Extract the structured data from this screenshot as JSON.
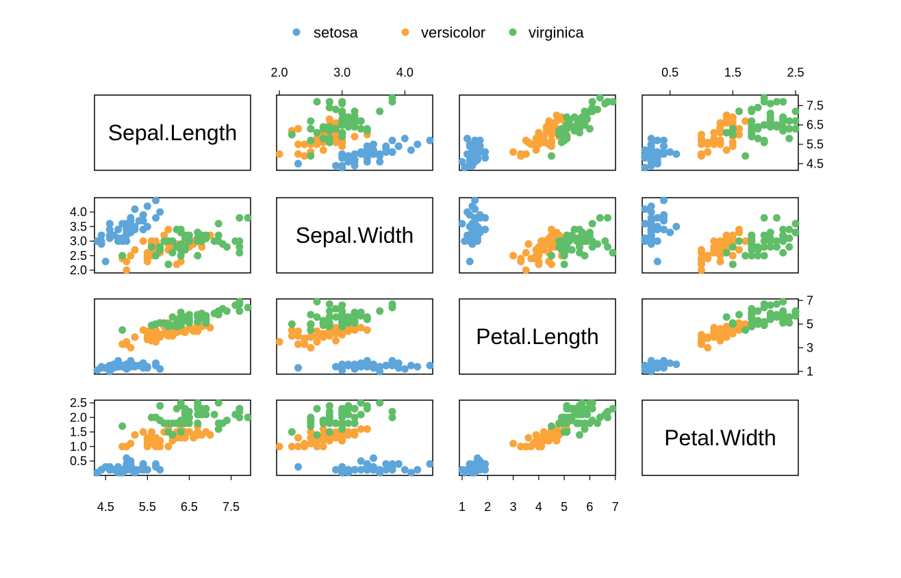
{
  "chart_data": {
    "type": "scatter",
    "kind": "scatterplot-matrix",
    "variables": [
      "Sepal.Length",
      "Sepal.Width",
      "Petal.Length",
      "Petal.Width"
    ],
    "axis_ranges": {
      "Sepal.Length": [
        4.3,
        7.9
      ],
      "Sepal.Width": [
        2.0,
        4.4
      ],
      "Petal.Length": [
        1.0,
        6.9
      ],
      "Petal.Width": [
        0.1,
        2.5
      ]
    },
    "ticks": {
      "Sepal.Length": [
        "4.5",
        "5.5",
        "6.5",
        "7.5"
      ],
      "Sepal.Width": [
        "2.0",
        "2.5",
        "3.0",
        "3.5",
        "4.0"
      ],
      "Sepal.Width.top": [
        "2.0",
        "3.0",
        "4.0"
      ],
      "Petal.Length": [
        "1",
        "2",
        "3",
        "4",
        "5",
        "6",
        "7"
      ],
      "Petal.Length.right": [
        "1",
        "3",
        "5",
        "7"
      ],
      "Petal.Width": [
        "0.5",
        "1.0",
        "1.5",
        "2.0",
        "2.5"
      ],
      "Petal.Width.top": [
        "0.5",
        "1.5",
        "2.5"
      ]
    },
    "legend": {
      "position": "top-center"
    },
    "grid": false,
    "series": [
      {
        "name": "setosa",
        "color": "#5DA5DA",
        "points": [
          [
            5.1,
            3.5,
            1.4,
            0.2
          ],
          [
            4.9,
            3.0,
            1.4,
            0.2
          ],
          [
            4.7,
            3.2,
            1.3,
            0.2
          ],
          [
            4.6,
            3.1,
            1.5,
            0.2
          ],
          [
            5.0,
            3.6,
            1.4,
            0.2
          ],
          [
            5.4,
            3.9,
            1.7,
            0.4
          ],
          [
            4.6,
            3.4,
            1.4,
            0.3
          ],
          [
            5.0,
            3.4,
            1.5,
            0.2
          ],
          [
            4.4,
            2.9,
            1.4,
            0.2
          ],
          [
            4.9,
            3.1,
            1.5,
            0.1
          ],
          [
            5.4,
            3.7,
            1.5,
            0.2
          ],
          [
            4.8,
            3.4,
            1.6,
            0.2
          ],
          [
            4.8,
            3.0,
            1.4,
            0.1
          ],
          [
            4.3,
            3.0,
            1.1,
            0.1
          ],
          [
            5.8,
            4.0,
            1.2,
            0.2
          ],
          [
            5.7,
            4.4,
            1.5,
            0.4
          ],
          [
            5.4,
            3.9,
            1.3,
            0.4
          ],
          [
            5.1,
            3.5,
            1.4,
            0.3
          ],
          [
            5.7,
            3.8,
            1.7,
            0.3
          ],
          [
            5.1,
            3.8,
            1.5,
            0.3
          ],
          [
            5.4,
            3.4,
            1.7,
            0.2
          ],
          [
            5.1,
            3.7,
            1.5,
            0.4
          ],
          [
            4.6,
            3.6,
            1.0,
            0.2
          ],
          [
            5.1,
            3.3,
            1.7,
            0.5
          ],
          [
            4.8,
            3.4,
            1.9,
            0.2
          ],
          [
            5.0,
            3.0,
            1.6,
            0.2
          ],
          [
            5.0,
            3.4,
            1.6,
            0.4
          ],
          [
            5.2,
            3.5,
            1.5,
            0.2
          ],
          [
            5.2,
            3.4,
            1.4,
            0.2
          ],
          [
            4.7,
            3.2,
            1.6,
            0.2
          ],
          [
            4.8,
            3.1,
            1.6,
            0.2
          ],
          [
            5.4,
            3.4,
            1.5,
            0.4
          ],
          [
            5.2,
            4.1,
            1.5,
            0.1
          ],
          [
            5.5,
            4.2,
            1.4,
            0.2
          ],
          [
            4.9,
            3.1,
            1.5,
            0.2
          ],
          [
            5.0,
            3.2,
            1.2,
            0.2
          ],
          [
            5.5,
            3.5,
            1.3,
            0.2
          ],
          [
            4.9,
            3.6,
            1.4,
            0.1
          ],
          [
            4.4,
            3.0,
            1.3,
            0.2
          ],
          [
            5.1,
            3.4,
            1.5,
            0.2
          ],
          [
            5.0,
            3.5,
            1.3,
            0.3
          ],
          [
            4.5,
            2.3,
            1.3,
            0.3
          ],
          [
            4.4,
            3.2,
            1.3,
            0.2
          ],
          [
            5.0,
            3.5,
            1.6,
            0.6
          ],
          [
            5.1,
            3.8,
            1.9,
            0.4
          ],
          [
            4.8,
            3.0,
            1.4,
            0.3
          ],
          [
            5.1,
            3.8,
            1.6,
            0.2
          ],
          [
            4.6,
            3.2,
            1.4,
            0.2
          ],
          [
            5.3,
            3.7,
            1.5,
            0.2
          ],
          [
            5.0,
            3.3,
            1.4,
            0.2
          ]
        ]
      },
      {
        "name": "versicolor",
        "color": "#FAA43A",
        "points": [
          [
            7.0,
            3.2,
            4.7,
            1.4
          ],
          [
            6.4,
            3.2,
            4.5,
            1.5
          ],
          [
            6.9,
            3.1,
            4.9,
            1.5
          ],
          [
            5.5,
            2.3,
            4.0,
            1.3
          ],
          [
            6.5,
            2.8,
            4.6,
            1.5
          ],
          [
            5.7,
            2.8,
            4.5,
            1.3
          ],
          [
            6.3,
            3.3,
            4.7,
            1.6
          ],
          [
            4.9,
            2.4,
            3.3,
            1.0
          ],
          [
            6.6,
            2.9,
            4.6,
            1.3
          ],
          [
            5.2,
            2.7,
            3.9,
            1.4
          ],
          [
            5.0,
            2.0,
            3.5,
            1.0
          ],
          [
            5.9,
            3.0,
            4.2,
            1.5
          ],
          [
            6.0,
            2.2,
            4.0,
            1.0
          ],
          [
            6.1,
            2.9,
            4.7,
            1.4
          ],
          [
            5.6,
            2.9,
            3.6,
            1.3
          ],
          [
            6.7,
            3.1,
            4.4,
            1.4
          ],
          [
            5.6,
            3.0,
            4.5,
            1.5
          ],
          [
            5.8,
            2.7,
            4.1,
            1.0
          ],
          [
            6.2,
            2.2,
            4.5,
            1.5
          ],
          [
            5.6,
            2.5,
            3.9,
            1.1
          ],
          [
            5.9,
            3.2,
            4.8,
            1.8
          ],
          [
            6.1,
            2.8,
            4.0,
            1.3
          ],
          [
            6.3,
            2.5,
            4.9,
            1.5
          ],
          [
            6.1,
            2.8,
            4.7,
            1.2
          ],
          [
            6.4,
            2.9,
            4.3,
            1.3
          ],
          [
            6.6,
            3.0,
            4.4,
            1.4
          ],
          [
            6.8,
            2.8,
            4.8,
            1.4
          ],
          [
            6.7,
            3.0,
            5.0,
            1.7
          ],
          [
            6.0,
            2.9,
            4.5,
            1.5
          ],
          [
            5.7,
            2.6,
            3.5,
            1.0
          ],
          [
            5.5,
            2.4,
            3.8,
            1.1
          ],
          [
            5.5,
            2.4,
            3.7,
            1.0
          ],
          [
            5.8,
            2.7,
            3.9,
            1.2
          ],
          [
            6.0,
            2.7,
            5.1,
            1.6
          ],
          [
            5.4,
            3.0,
            4.5,
            1.5
          ],
          [
            6.0,
            3.4,
            4.5,
            1.6
          ],
          [
            6.7,
            3.1,
            4.7,
            1.5
          ],
          [
            6.3,
            2.3,
            4.4,
            1.3
          ],
          [
            5.6,
            3.0,
            4.1,
            1.3
          ],
          [
            5.5,
            2.5,
            4.0,
            1.3
          ],
          [
            5.5,
            2.6,
            4.4,
            1.2
          ],
          [
            6.1,
            3.0,
            4.6,
            1.4
          ],
          [
            5.8,
            2.6,
            4.0,
            1.2
          ],
          [
            5.0,
            2.3,
            3.3,
            1.0
          ],
          [
            5.6,
            2.7,
            4.2,
            1.3
          ],
          [
            5.7,
            3.0,
            4.2,
            1.2
          ],
          [
            5.7,
            2.9,
            4.2,
            1.3
          ],
          [
            6.2,
            2.9,
            4.3,
            1.3
          ],
          [
            5.1,
            2.5,
            3.0,
            1.1
          ],
          [
            5.7,
            2.8,
            4.1,
            1.3
          ]
        ]
      },
      {
        "name": "virginica",
        "color": "#60BD68",
        "points": [
          [
            6.3,
            3.3,
            6.0,
            2.5
          ],
          [
            5.8,
            2.7,
            5.1,
            1.9
          ],
          [
            7.1,
            3.0,
            5.9,
            2.1
          ],
          [
            6.3,
            2.9,
            5.6,
            1.8
          ],
          [
            6.5,
            3.0,
            5.8,
            2.2
          ],
          [
            7.6,
            3.0,
            6.6,
            2.1
          ],
          [
            4.9,
            2.5,
            4.5,
            1.7
          ],
          [
            7.3,
            2.9,
            6.3,
            1.8
          ],
          [
            6.7,
            2.5,
            5.8,
            1.8
          ],
          [
            7.2,
            3.6,
            6.1,
            2.5
          ],
          [
            6.5,
            3.2,
            5.1,
            2.0
          ],
          [
            6.4,
            2.7,
            5.3,
            1.9
          ],
          [
            6.8,
            3.0,
            5.5,
            2.1
          ],
          [
            5.7,
            2.5,
            5.0,
            2.0
          ],
          [
            5.8,
            2.8,
            5.1,
            2.4
          ],
          [
            6.4,
            3.2,
            5.3,
            2.3
          ],
          [
            6.5,
            3.0,
            5.5,
            1.8
          ],
          [
            7.7,
            3.8,
            6.7,
            2.2
          ],
          [
            7.7,
            2.6,
            6.9,
            2.3
          ],
          [
            6.0,
            2.2,
            5.0,
            1.5
          ],
          [
            6.9,
            3.2,
            5.7,
            2.3
          ],
          [
            5.6,
            2.8,
            4.9,
            2.0
          ],
          [
            7.7,
            2.8,
            6.7,
            2.0
          ],
          [
            6.3,
            2.7,
            4.9,
            1.8
          ],
          [
            6.7,
            3.3,
            5.7,
            2.1
          ],
          [
            7.2,
            3.2,
            6.0,
            1.8
          ],
          [
            6.2,
            2.8,
            4.8,
            1.8
          ],
          [
            6.1,
            3.0,
            4.9,
            1.8
          ],
          [
            6.4,
            2.8,
            5.6,
            2.1
          ],
          [
            7.2,
            3.0,
            5.8,
            1.6
          ],
          [
            7.4,
            2.8,
            6.1,
            1.9
          ],
          [
            7.9,
            3.8,
            6.4,
            2.0
          ],
          [
            6.4,
            2.8,
            5.6,
            2.2
          ],
          [
            6.3,
            2.8,
            5.1,
            1.5
          ],
          [
            6.1,
            2.6,
            5.6,
            1.4
          ],
          [
            7.7,
            3.0,
            6.1,
            2.3
          ],
          [
            6.3,
            3.4,
            5.6,
            2.4
          ],
          [
            6.4,
            3.1,
            5.5,
            1.8
          ],
          [
            6.0,
            3.0,
            4.8,
            1.8
          ],
          [
            6.9,
            3.1,
            5.4,
            2.1
          ],
          [
            6.7,
            3.1,
            5.6,
            2.4
          ],
          [
            6.9,
            3.1,
            5.1,
            2.3
          ],
          [
            5.8,
            2.7,
            5.1,
            1.9
          ],
          [
            6.8,
            3.2,
            5.9,
            2.3
          ],
          [
            6.7,
            3.3,
            5.7,
            2.5
          ],
          [
            6.7,
            3.0,
            5.2,
            2.3
          ],
          [
            6.3,
            2.5,
            5.0,
            1.9
          ],
          [
            6.5,
            3.0,
            5.2,
            2.0
          ],
          [
            6.2,
            3.4,
            5.4,
            2.3
          ],
          [
            5.9,
            3.0,
            5.1,
            1.8
          ]
        ]
      }
    ]
  }
}
